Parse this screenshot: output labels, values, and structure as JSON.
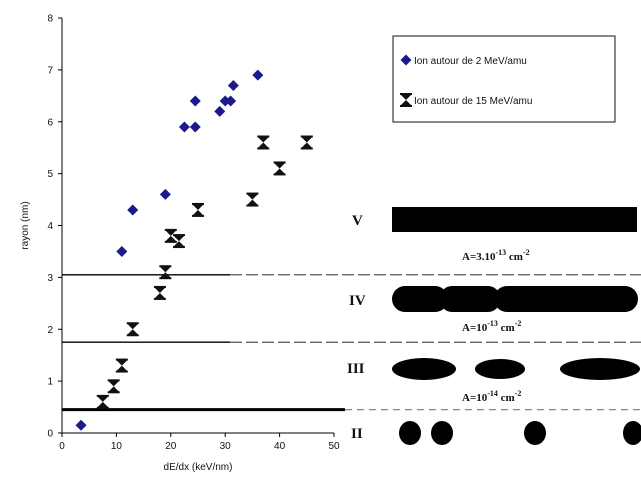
{
  "chart_data": {
    "type": "scatter",
    "xlabel": "dE/dx (keV/nm)",
    "ylabel": "rayon (nm)",
    "xlim": [
      0,
      50
    ],
    "ylim": [
      0,
      8
    ],
    "x_ticks": [
      "0",
      "10",
      "20",
      "30",
      "40",
      "50"
    ],
    "y_ticks": [
      "0",
      "1",
      "2",
      "3",
      "4",
      "5",
      "6",
      "7",
      "8"
    ],
    "legend_position": "top-right",
    "series": [
      {
        "name": "Ion autour de 2 MeV/amu",
        "marker": "diamond",
        "color": "#1a1a8c",
        "points": [
          [
            3.5,
            0.15
          ],
          [
            11,
            3.5
          ],
          [
            13,
            4.3
          ],
          [
            19,
            4.6
          ],
          [
            22.5,
            5.9
          ],
          [
            24.5,
            5.9
          ],
          [
            24.5,
            6.4
          ],
          [
            29,
            6.2
          ],
          [
            30,
            6.4
          ],
          [
            31,
            6.4
          ],
          [
            31.5,
            6.7
          ],
          [
            36,
            6.9
          ]
        ]
      },
      {
        "name": "Ion autour de 15 MeV/amu",
        "marker": "bowtie",
        "color": "#111111",
        "points": [
          [
            7.5,
            0.6
          ],
          [
            9.5,
            0.9
          ],
          [
            11,
            1.3
          ],
          [
            13,
            2.0
          ],
          [
            18,
            2.7
          ],
          [
            19,
            3.1
          ],
          [
            20,
            3.8
          ],
          [
            21.5,
            3.7
          ],
          [
            25,
            4.3
          ],
          [
            35,
            4.5
          ],
          [
            37,
            5.6
          ],
          [
            40,
            5.1
          ],
          [
            45,
            5.6
          ]
        ]
      }
    ],
    "thresholds": [
      {
        "y": 0.45,
        "style": "thick"
      },
      {
        "y": 1.75,
        "style": "dashed"
      },
      {
        "y": 3.05,
        "style": "dashed"
      }
    ],
    "regions": [
      {
        "roman": "V",
        "area_base": "A=3.10",
        "area_exp": "-13",
        "area_unit": " cm",
        "area_unit_exp": "-2"
      },
      {
        "roman": "IV",
        "area_base": "A=10",
        "area_exp": "-13",
        "area_unit": " cm",
        "area_unit_exp": "-2"
      },
      {
        "roman": "III",
        "area_base": "A=10",
        "area_exp": "-14",
        "area_unit": " cm",
        "area_unit_exp": "-2"
      },
      {
        "roman": "II"
      }
    ]
  }
}
